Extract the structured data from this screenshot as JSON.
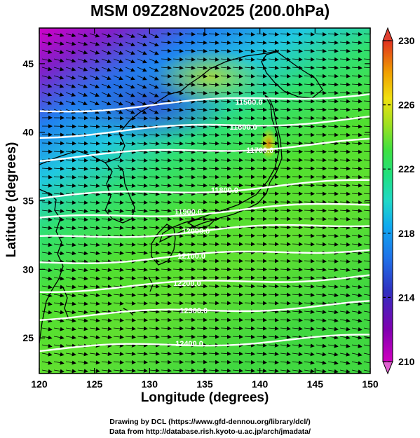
{
  "title": "MSM 09Z28Nov2025 (200.0hPa)",
  "x_axis": {
    "label": "Longitude (degrees)",
    "ticks": [
      120,
      125,
      130,
      135,
      140,
      145,
      150
    ],
    "range": [
      120,
      150
    ]
  },
  "y_axis": {
    "label": "Latitude  (degrees)",
    "ticks": [
      25,
      30,
      35,
      40,
      45
    ],
    "range": [
      22.4,
      47.6
    ]
  },
  "colorbar": {
    "ticks": [
      210,
      214,
      218,
      222,
      226,
      230
    ],
    "range": [
      210,
      230
    ],
    "colors": [
      "#c000c0",
      "#8000b0",
      "#3030c0",
      "#2060e0",
      "#10a0f0",
      "#20d8d8",
      "#20e090",
      "#30e050",
      "#80e020",
      "#c0e020",
      "#f0e010",
      "#f0b000",
      "#f07000",
      "#e03020"
    ]
  },
  "contours": {
    "color": "#ffffff",
    "levels": [
      {
        "label": "11500.0",
        "lon": 139,
        "lat": 42.2
      },
      {
        "label": "11600.0",
        "lon": 138.5,
        "lat": 40.4
      },
      {
        "label": "11700.0",
        "lon": 140,
        "lat": 38.7
      },
      {
        "label": "11800.0",
        "lon": 136.8,
        "lat": 35.8
      },
      {
        "label": "11900.0",
        "lon": 133.5,
        "lat": 34.2
      },
      {
        "label": "12000.0",
        "lon": 134.2,
        "lat": 32.8
      },
      {
        "label": "12100.0",
        "lon": 133.8,
        "lat": 31.0
      },
      {
        "label": "12200.0",
        "lon": 133.4,
        "lat": 29.0
      },
      {
        "label": "12300.0",
        "lon": 134,
        "lat": 27.0
      },
      {
        "label": "12400.0",
        "lon": 133.6,
        "lat": 24.6
      }
    ]
  },
  "credits": [
    "Drawing by DCL (https://www.gfd-dennou.org/library/dcl/)",
    "Data from http://database.rish.kyoto-u.ac.jp/arch/jmadata/"
  ]
}
